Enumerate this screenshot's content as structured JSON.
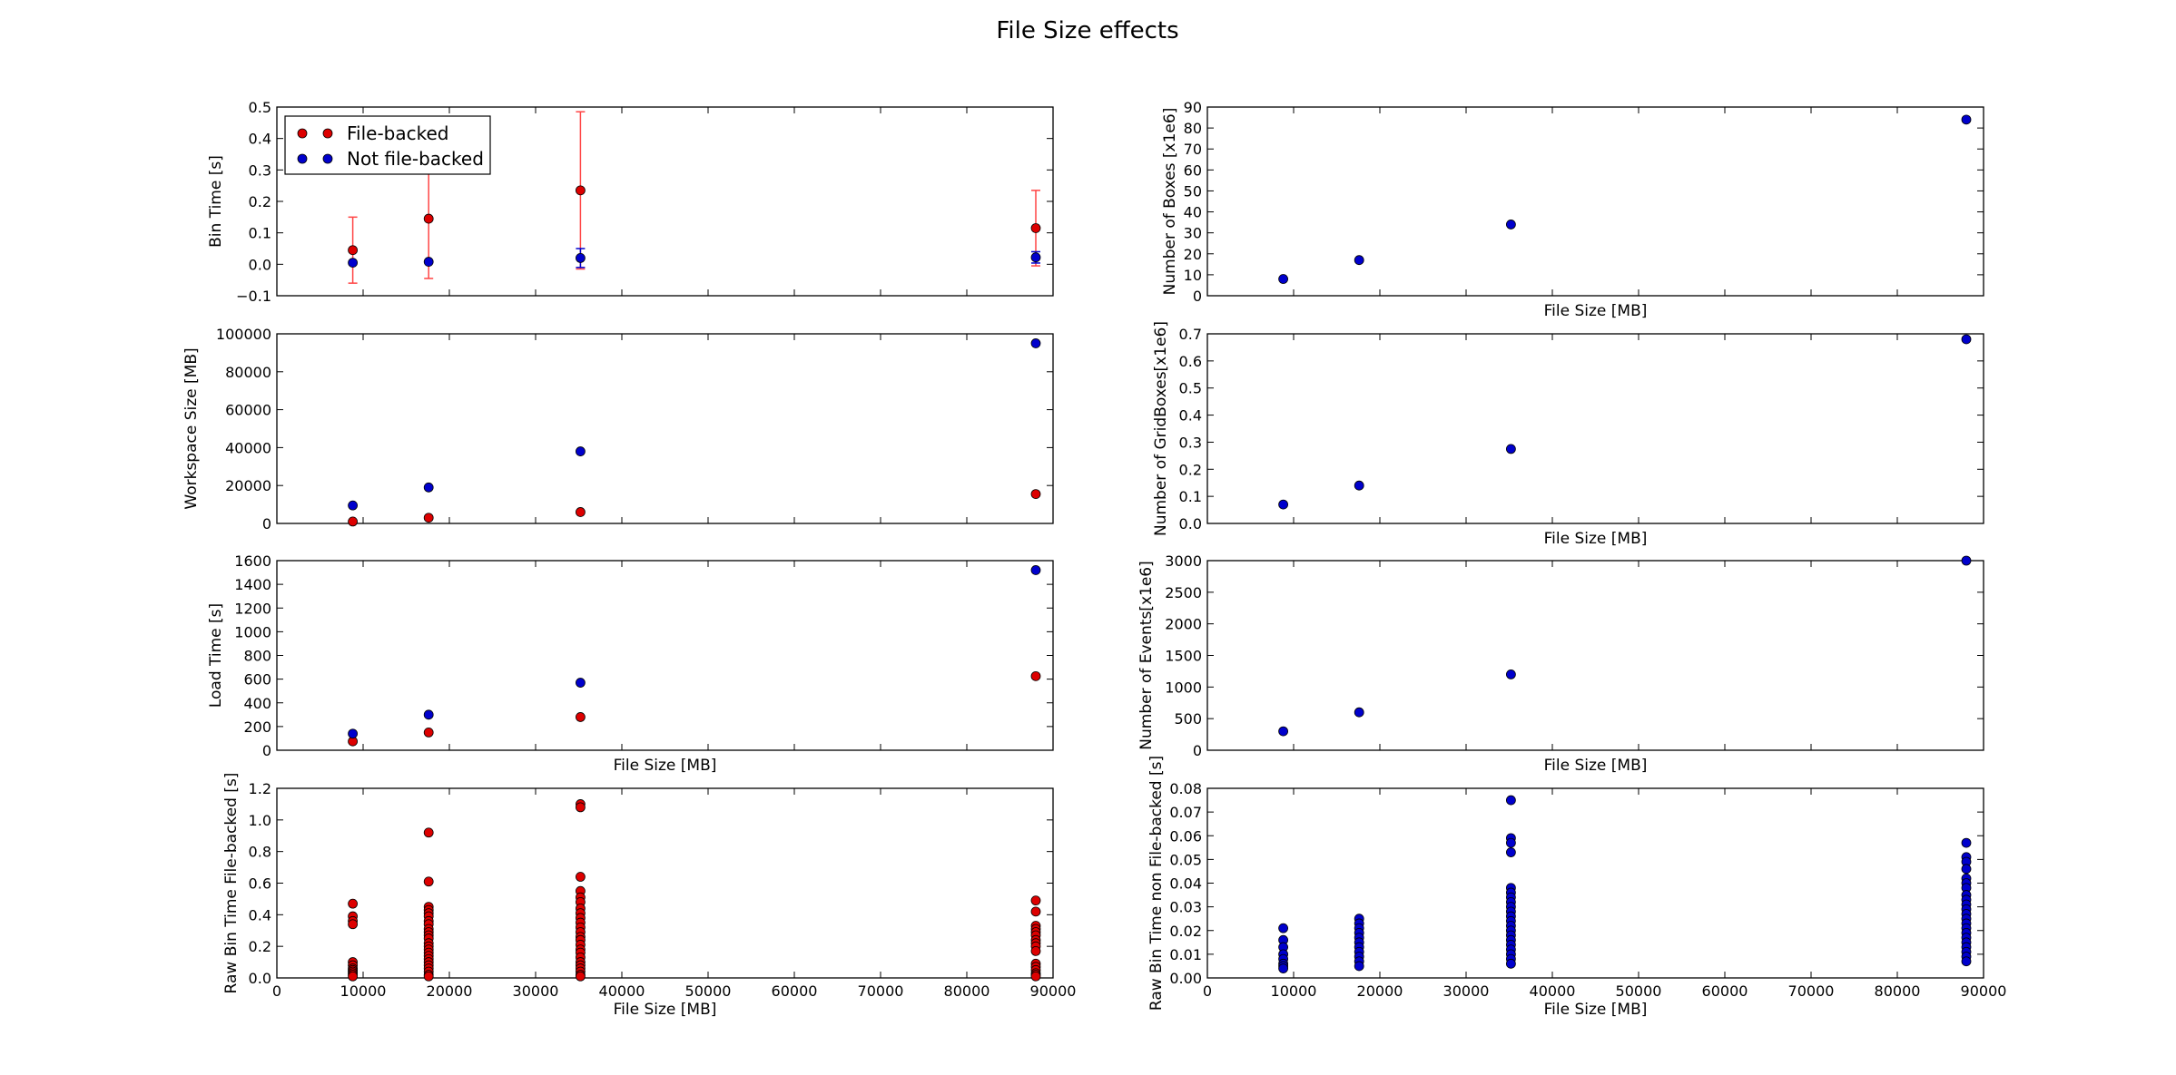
{
  "figure": {
    "title": "File Size effects"
  },
  "colors": {
    "file_backed": "#dd0000",
    "not_file_backed": "#0000cc",
    "errorbar": "#ff4444"
  },
  "chart_data": [
    {
      "type": "scatter",
      "ylabel": "Bin Time [s]",
      "xlabel": "",
      "xlim": [
        0,
        90000
      ],
      "ylim": [
        -0.1,
        0.5
      ],
      "yticks": [
        "−0.1",
        "0.0",
        "0.1",
        "0.2",
        "0.3",
        "0.4",
        "0.5"
      ],
      "xticks": [],
      "legend": {
        "position": "upper-left",
        "entries": [
          "File-backed",
          "Not file-backed"
        ]
      },
      "series": [
        {
          "name": "File-backed",
          "color_key": "file_backed",
          "x": [
            8800,
            17600,
            35200,
            88000
          ],
          "y": [
            0.045,
            0.145,
            0.235,
            0.115
          ],
          "yerr": [
            0.105,
            0.19,
            0.25,
            0.12
          ]
        },
        {
          "name": "Not file-backed",
          "color_key": "not_file_backed",
          "x": [
            8800,
            17600,
            35200,
            88000
          ],
          "y": [
            0.005,
            0.008,
            0.02,
            0.022
          ],
          "yerr": [
            0.0,
            0.0,
            0.03,
            0.018
          ]
        }
      ]
    },
    {
      "type": "scatter",
      "ylabel": "Workspace Size [MB]",
      "xlabel": "",
      "xlim": [
        0,
        90000
      ],
      "ylim": [
        0,
        100000
      ],
      "yticks": [
        "0",
        "20000",
        "40000",
        "60000",
        "80000",
        "100000"
      ],
      "xticks": [],
      "series": [
        {
          "color_key": "file_backed",
          "x": [
            8800,
            17600,
            35200,
            88000
          ],
          "y": [
            1000,
            3000,
            6000,
            15500
          ]
        },
        {
          "color_key": "not_file_backed",
          "x": [
            8800,
            17600,
            35200,
            88000
          ],
          "y": [
            9500,
            19000,
            38000,
            95000
          ]
        }
      ]
    },
    {
      "type": "scatter",
      "ylabel": "Load Time [s]",
      "xlabel": "File Size [MB]",
      "xlim": [
        0,
        90000
      ],
      "ylim": [
        0,
        1600
      ],
      "yticks": [
        "0",
        "200",
        "400",
        "600",
        "800",
        "1000",
        "1200",
        "1400",
        "1600"
      ],
      "xticks": [],
      "series": [
        {
          "color_key": "file_backed",
          "x": [
            8800,
            17600,
            35200,
            88000
          ],
          "y": [
            75,
            150,
            280,
            625
          ]
        },
        {
          "color_key": "not_file_backed",
          "x": [
            8800,
            17600,
            35200,
            88000
          ],
          "y": [
            140,
            300,
            570,
            1520
          ]
        }
      ]
    },
    {
      "type": "scatter",
      "ylabel": "Raw Bin Time File-backed [s]",
      "xlabel": "File Size [MB]",
      "xlim": [
        0,
        90000
      ],
      "ylim": [
        0,
        1.2
      ],
      "yticks": [
        "0.0",
        "0.2",
        "0.4",
        "0.6",
        "0.8",
        "1.0",
        "1.2"
      ],
      "xticks": [
        "0",
        "10000",
        "20000",
        "30000",
        "40000",
        "50000",
        "60000",
        "70000",
        "80000",
        "90000"
      ],
      "series": [
        {
          "color_key": "file_backed",
          "x": 8800,
          "y": [
            0.47,
            0.39,
            0.36,
            0.34,
            0.1,
            0.08,
            0.06,
            0.05,
            0.04,
            0.03,
            0.02,
            0.01
          ]
        },
        {
          "color_key": "file_backed",
          "x": 17600,
          "y": [
            0.92,
            0.61,
            0.45,
            0.43,
            0.41,
            0.39,
            0.36,
            0.34,
            0.31,
            0.29,
            0.27,
            0.25,
            0.22,
            0.2,
            0.18,
            0.16,
            0.14,
            0.12,
            0.1,
            0.08,
            0.06,
            0.04,
            0.02,
            0.01
          ]
        },
        {
          "color_key": "file_backed",
          "x": 35200,
          "y": [
            1.1,
            1.08,
            0.64,
            0.55,
            0.51,
            0.48,
            0.44,
            0.41,
            0.38,
            0.35,
            0.32,
            0.29,
            0.26,
            0.24,
            0.21,
            0.18,
            0.16,
            0.13,
            0.1,
            0.08,
            0.06,
            0.04,
            0.02,
            0.01
          ]
        },
        {
          "color_key": "file_backed",
          "x": 88000,
          "y": [
            0.49,
            0.42,
            0.33,
            0.31,
            0.29,
            0.27,
            0.24,
            0.22,
            0.2,
            0.17,
            0.09,
            0.07,
            0.05,
            0.03,
            0.02,
            0.01
          ]
        }
      ]
    },
    {
      "type": "scatter",
      "ylabel": "Number of Boxes [x1e6]",
      "xlabel": "File Size [MB]",
      "xlim": [
        0,
        90000
      ],
      "ylim": [
        0,
        90
      ],
      "yticks": [
        "0",
        "10",
        "20",
        "30",
        "40",
        "50",
        "60",
        "70",
        "80",
        "90"
      ],
      "xticks": [],
      "series": [
        {
          "color_key": "not_file_backed",
          "x": [
            8800,
            17600,
            35200,
            88000
          ],
          "y": [
            8,
            17,
            34,
            84
          ]
        }
      ]
    },
    {
      "type": "scatter",
      "ylabel": "Number of GridBoxes[x1e6]",
      "xlabel": "File Size [MB]",
      "xlim": [
        0,
        90000
      ],
      "ylim": [
        0,
        0.7
      ],
      "yticks": [
        "0.0",
        "0.1",
        "0.2",
        "0.3",
        "0.4",
        "0.5",
        "0.6",
        "0.7"
      ],
      "xticks": [],
      "series": [
        {
          "color_key": "not_file_backed",
          "x": [
            8800,
            17600,
            35200,
            88000
          ],
          "y": [
            0.07,
            0.14,
            0.275,
            0.68
          ]
        }
      ]
    },
    {
      "type": "scatter",
      "ylabel": "Number of Events[x1e6]",
      "xlabel": "File Size [MB]",
      "xlim": [
        0,
        90000
      ],
      "ylim": [
        0,
        3000
      ],
      "yticks": [
        "0",
        "500",
        "1000",
        "1500",
        "2000",
        "2500",
        "3000"
      ],
      "xticks": [],
      "series": [
        {
          "color_key": "not_file_backed",
          "x": [
            8800,
            17600,
            35200,
            88000
          ],
          "y": [
            300,
            600,
            1200,
            3000
          ]
        }
      ]
    },
    {
      "type": "scatter",
      "ylabel": "Raw Bin Time non File-backed [s]",
      "xlabel": "File Size [MB]",
      "xlim": [
        0,
        90000
      ],
      "ylim": [
        0,
        0.08
      ],
      "yticks": [
        "0.00",
        "0.01",
        "0.02",
        "0.03",
        "0.04",
        "0.05",
        "0.06",
        "0.07",
        "0.08"
      ],
      "xticks": [
        "0",
        "10000",
        "20000",
        "30000",
        "40000",
        "50000",
        "60000",
        "70000",
        "80000",
        "90000"
      ],
      "series": [
        {
          "color_key": "not_file_backed",
          "x": 8800,
          "y": [
            0.021,
            0.016,
            0.013,
            0.01,
            0.008,
            0.006,
            0.005,
            0.004
          ]
        },
        {
          "color_key": "not_file_backed",
          "x": 17600,
          "y": [
            0.025,
            0.023,
            0.021,
            0.019,
            0.017,
            0.015,
            0.013,
            0.011,
            0.009,
            0.007,
            0.005
          ]
        },
        {
          "color_key": "not_file_backed",
          "x": 35200,
          "y": [
            0.075,
            0.059,
            0.057,
            0.053,
            0.038,
            0.036,
            0.034,
            0.032,
            0.03,
            0.028,
            0.026,
            0.024,
            0.022,
            0.02,
            0.018,
            0.016,
            0.014,
            0.012,
            0.01,
            0.008,
            0.006
          ]
        },
        {
          "color_key": "not_file_backed",
          "x": 88000,
          "y": [
            0.057,
            0.051,
            0.049,
            0.046,
            0.042,
            0.04,
            0.038,
            0.035,
            0.033,
            0.031,
            0.029,
            0.027,
            0.025,
            0.023,
            0.021,
            0.019,
            0.017,
            0.015,
            0.013,
            0.011,
            0.009,
            0.007
          ]
        }
      ]
    }
  ]
}
